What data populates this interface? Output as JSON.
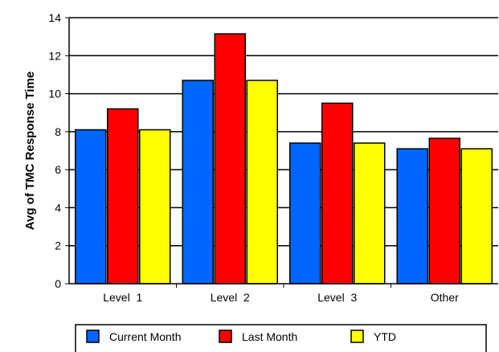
{
  "chart_data": {
    "type": "bar",
    "ylabel": "Avg of TMC Response Time",
    "xlabel": "",
    "ylim": [
      0,
      14
    ],
    "yticks": [
      0,
      2,
      4,
      6,
      8,
      10,
      12,
      14
    ],
    "ytick_labels": [
      "0",
      "2",
      "4",
      "6",
      "8",
      "10",
      "12",
      "14"
    ],
    "categories": [
      "Level  1",
      "Level  2",
      "Level  3",
      "Other"
    ],
    "grid": true,
    "legend_position": "bottom",
    "series": [
      {
        "name": "Current Month",
        "color": "#0066FF",
        "values": [
          8.1,
          10.7,
          7.4,
          7.1
        ]
      },
      {
        "name": "Last Month",
        "color": "#FF0000",
        "values": [
          9.2,
          13.15,
          9.5,
          7.65
        ]
      },
      {
        "name": "YTD",
        "color": "#FFFF00",
        "values": [
          8.1,
          10.7,
          7.4,
          7.1
        ]
      }
    ]
  }
}
